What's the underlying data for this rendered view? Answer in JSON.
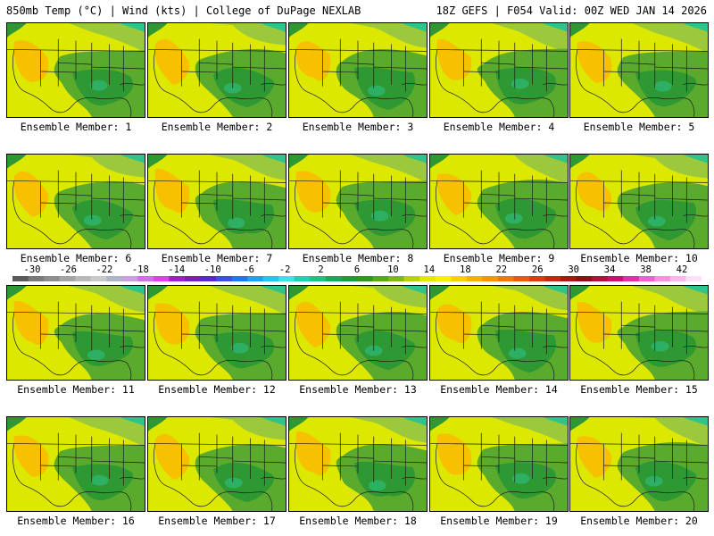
{
  "header": {
    "left_title": "850mb Temp (°C) | Wind (kts) | College of DuPage NEXLAB",
    "right_title": "18Z GEFS | F054 Valid: 00Z WED JAN 14 2026"
  },
  "panel_label_prefix": "Ensemble Member: ",
  "members": [
    1,
    2,
    3,
    4,
    5,
    6,
    7,
    8,
    9,
    10,
    11,
    12,
    13,
    14,
    15,
    16,
    17,
    18,
    19,
    20
  ],
  "colorbar": {
    "tick_labels": [
      "-30",
      "-26",
      "-22",
      "-18",
      "-14",
      "-10",
      "-6",
      "-2",
      "2",
      "6",
      "10",
      "14",
      "18",
      "22",
      "26",
      "30",
      "34",
      "38",
      "42"
    ],
    "tick_values": [
      -30,
      -26,
      -22,
      -18,
      -14,
      -10,
      -6,
      -2,
      2,
      6,
      10,
      14,
      18,
      22,
      26,
      30,
      34,
      38,
      42
    ],
    "colors": [
      "#5a5a5a",
      "#7a7a7a",
      "#8e8e8e",
      "#a4a4a4",
      "#b8b8b8",
      "#c9c9c9",
      "#b0b4c8",
      "#c8a0e0",
      "#d26ee8",
      "#e040e8",
      "#a020c8",
      "#7a20b4",
      "#5a28c8",
      "#3a50e0",
      "#1e78f0",
      "#20a0f0",
      "#20c8f0",
      "#40e0e8",
      "#20d0b0",
      "#20c080",
      "#1aa85a",
      "#1c9a3c",
      "#2c9820",
      "#56aa18",
      "#80b818",
      "#b8d010",
      "#e0e800",
      "#f8f000",
      "#fad000",
      "#f8b000",
      "#f89400",
      "#f07810",
      "#e85a10",
      "#d83c10",
      "#c42810",
      "#a81810",
      "#8c1014",
      "#b0103c",
      "#cc1070",
      "#e030a8",
      "#f060d0",
      "#f890e0",
      "#fcb8ee",
      "#fde0f8"
    ]
  },
  "colors": {
    "land_yellow": "#dde800",
    "warm_orange": "#f7c000",
    "light_green": "#9cc83c",
    "mid_green": "#5aaa2e",
    "dark_green": "#2e9832",
    "teal": "#2ec48c",
    "border_line": "#1a1a1a"
  }
}
